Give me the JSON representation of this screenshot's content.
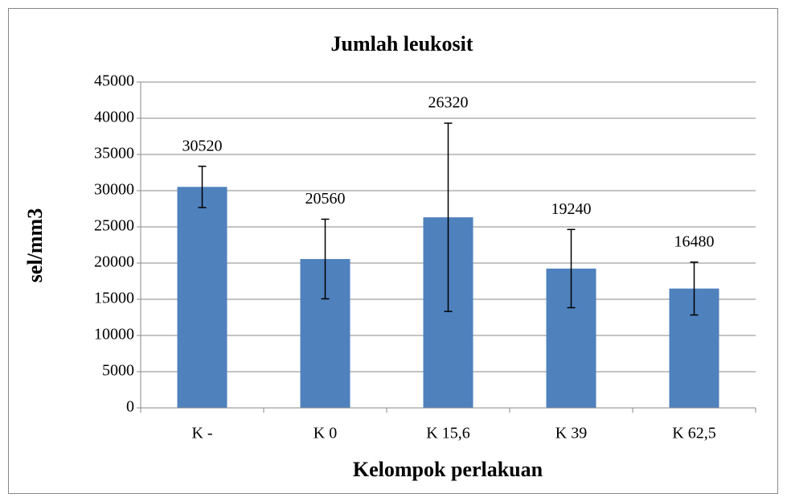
{
  "chart_data": {
    "type": "bar",
    "title": "Jumlah leukosit",
    "x_label": "Kelompok perlakuan",
    "y_label": "sel/mm3",
    "categories": [
      "K -",
      "K 0",
      "K 15,6",
      "K 39",
      "K 62,5"
    ],
    "values": [
      30520,
      20560,
      26320,
      19240,
      16480
    ],
    "errors": [
      2850,
      5500,
      13000,
      5400,
      3650
    ],
    "color": "#4f81bd",
    "ylim": [
      0,
      45000
    ],
    "yticks": [
      0,
      5000,
      10000,
      15000,
      20000,
      25000,
      30000,
      35000,
      40000,
      45000
    ],
    "grid": true
  }
}
